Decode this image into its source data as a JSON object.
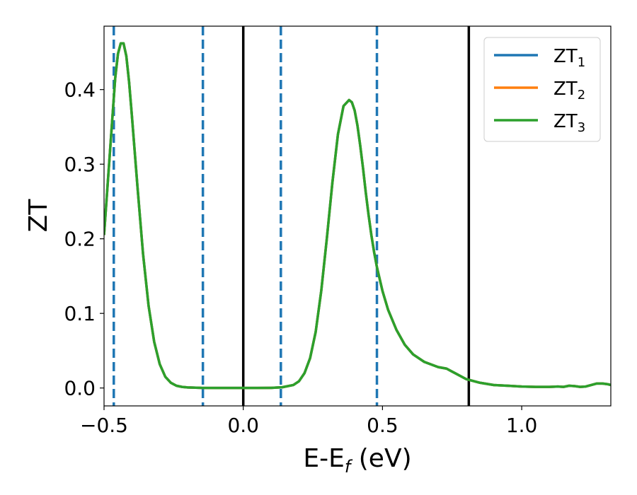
{
  "chart_data": {
    "type": "line",
    "xlabel": {
      "main": "E-E",
      "sub": "f",
      "suffix": " (eV)"
    },
    "ylabel": "ZT",
    "xlim": [
      -0.5,
      1.32
    ],
    "ylim": [
      -0.024,
      0.485
    ],
    "xticks": [
      {
        "value": -0.5,
        "label": "−0.5"
      },
      {
        "value": 0.0,
        "label": "0.0"
      },
      {
        "value": 0.5,
        "label": "0.5"
      },
      {
        "value": 1.0,
        "label": "1.0"
      }
    ],
    "yticks": [
      {
        "value": 0.0,
        "label": "0.0"
      },
      {
        "value": 0.1,
        "label": "0.1"
      },
      {
        "value": 0.2,
        "label": "0.2"
      },
      {
        "value": 0.3,
        "label": "0.3"
      },
      {
        "value": 0.4,
        "label": "0.4"
      }
    ],
    "grid": false,
    "legend_position": "top-right",
    "vlines_solid": [
      0.0,
      0.81
    ],
    "vlines_dashed": [
      -0.465,
      -0.145,
      0.135,
      0.48
    ],
    "vline_solid_color": "#000000",
    "vline_dashed_color": "#1f77b4",
    "x": [
      -0.5,
      -0.48,
      -0.46,
      -0.45,
      -0.44,
      -0.43,
      -0.42,
      -0.41,
      -0.4,
      -0.38,
      -0.36,
      -0.34,
      -0.32,
      -0.3,
      -0.28,
      -0.26,
      -0.24,
      -0.22,
      -0.2,
      -0.15,
      -0.1,
      -0.05,
      0.0,
      0.05,
      0.1,
      0.14,
      0.18,
      0.2,
      0.22,
      0.24,
      0.26,
      0.28,
      0.3,
      0.32,
      0.34,
      0.36,
      0.38,
      0.39,
      0.4,
      0.41,
      0.42,
      0.43,
      0.44,
      0.45,
      0.46,
      0.47,
      0.48,
      0.5,
      0.52,
      0.55,
      0.58,
      0.61,
      0.65,
      0.7,
      0.73,
      0.76,
      0.8,
      0.85,
      0.9,
      0.95,
      1.0,
      1.05,
      1.1,
      1.13,
      1.15,
      1.17,
      1.19,
      1.21,
      1.23,
      1.25,
      1.27,
      1.29,
      1.31,
      1.32
    ],
    "series": [
      {
        "name": "ZT",
        "sub": "1",
        "color": "#1f77b4",
        "values": [
          0.205,
          0.31,
          0.415,
          0.448,
          0.462,
          0.462,
          0.445,
          0.41,
          0.365,
          0.27,
          0.18,
          0.11,
          0.062,
          0.032,
          0.015,
          0.007,
          0.003,
          0.0015,
          0.0008,
          0.0002,
          0.0001,
          0.0,
          0.0,
          0.0,
          0.0002,
          0.001,
          0.004,
          0.009,
          0.02,
          0.04,
          0.075,
          0.13,
          0.2,
          0.275,
          0.34,
          0.378,
          0.386,
          0.383,
          0.372,
          0.352,
          0.325,
          0.295,
          0.262,
          0.232,
          0.205,
          0.182,
          0.162,
          0.13,
          0.105,
          0.078,
          0.058,
          0.045,
          0.035,
          0.028,
          0.026,
          0.02,
          0.012,
          0.007,
          0.004,
          0.003,
          0.002,
          0.0015,
          0.0015,
          0.002,
          0.0015,
          0.003,
          0.0025,
          0.0015,
          0.002,
          0.004,
          0.006,
          0.006,
          0.005,
          0.004
        ]
      },
      {
        "name": "ZT",
        "sub": "2",
        "color": "#ff7f0e",
        "values": [
          0.205,
          0.31,
          0.415,
          0.448,
          0.462,
          0.462,
          0.445,
          0.41,
          0.365,
          0.27,
          0.18,
          0.11,
          0.062,
          0.032,
          0.015,
          0.007,
          0.003,
          0.0015,
          0.0008,
          0.0002,
          0.0001,
          0.0,
          0.0,
          0.0,
          0.0002,
          0.001,
          0.004,
          0.009,
          0.02,
          0.04,
          0.075,
          0.13,
          0.2,
          0.275,
          0.34,
          0.378,
          0.386,
          0.383,
          0.372,
          0.352,
          0.325,
          0.295,
          0.262,
          0.232,
          0.205,
          0.182,
          0.162,
          0.13,
          0.105,
          0.078,
          0.058,
          0.045,
          0.035,
          0.028,
          0.026,
          0.02,
          0.012,
          0.007,
          0.004,
          0.003,
          0.002,
          0.0015,
          0.0015,
          0.002,
          0.0015,
          0.003,
          0.0025,
          0.0015,
          0.002,
          0.004,
          0.006,
          0.006,
          0.005,
          0.004
        ]
      },
      {
        "name": "ZT",
        "sub": "3",
        "color": "#2ca02c",
        "values": [
          0.205,
          0.31,
          0.415,
          0.448,
          0.462,
          0.462,
          0.445,
          0.41,
          0.365,
          0.27,
          0.18,
          0.11,
          0.062,
          0.032,
          0.015,
          0.007,
          0.003,
          0.0015,
          0.0008,
          0.0002,
          0.0001,
          0.0,
          0.0,
          0.0,
          0.0002,
          0.001,
          0.004,
          0.009,
          0.02,
          0.04,
          0.075,
          0.13,
          0.2,
          0.275,
          0.34,
          0.378,
          0.386,
          0.383,
          0.372,
          0.352,
          0.325,
          0.295,
          0.262,
          0.232,
          0.205,
          0.182,
          0.162,
          0.13,
          0.105,
          0.078,
          0.058,
          0.045,
          0.035,
          0.028,
          0.026,
          0.02,
          0.012,
          0.007,
          0.004,
          0.003,
          0.002,
          0.0015,
          0.0015,
          0.002,
          0.0015,
          0.003,
          0.0025,
          0.0015,
          0.002,
          0.004,
          0.006,
          0.006,
          0.005,
          0.004
        ]
      }
    ]
  }
}
